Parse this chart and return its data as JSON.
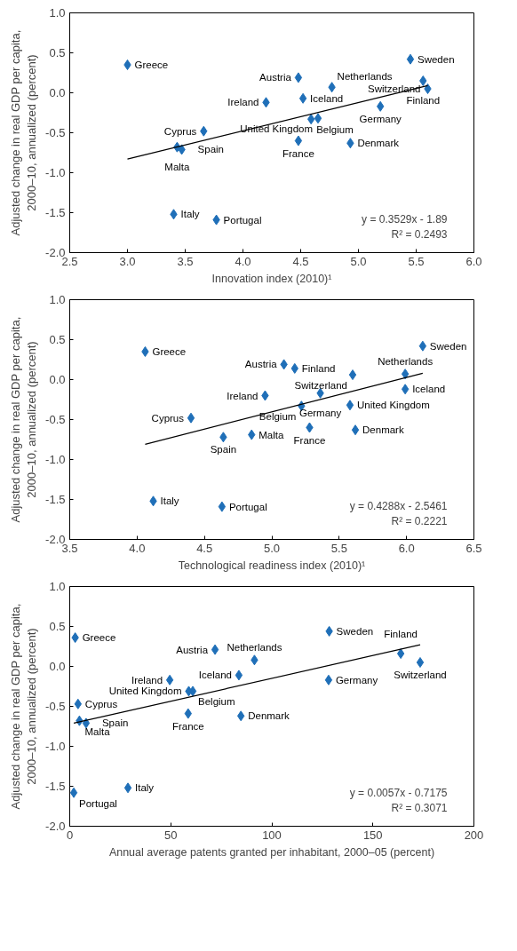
{
  "chart_data": [
    {
      "type": "scatter",
      "xlabel": "Innovation index (2010)¹",
      "ylabel": "Adjusted change in real GDP per capita,\n2000–10, annualized (percent)",
      "xlim": [
        2.5,
        6.0
      ],
      "ylim": [
        -2.0,
        1.0
      ],
      "grid": false,
      "marker": "diamond",
      "xticks": [
        {
          "value": 2.5,
          "label": "2.5"
        },
        {
          "value": 3,
          "label": "3.0"
        },
        {
          "value": 3.5,
          "label": "3.5"
        },
        {
          "value": 4,
          "label": "4.0"
        },
        {
          "value": 4.5,
          "label": "4.5"
        },
        {
          "value": 5,
          "label": "5.0"
        },
        {
          "value": 5.5,
          "label": "5.5"
        },
        {
          "value": 6,
          "label": "6.0"
        }
      ],
      "yticks": [
        {
          "value": -2,
          "label": "-2.0"
        },
        {
          "value": -1.5,
          "label": "-1.5"
        },
        {
          "value": -1,
          "label": "-1.0"
        },
        {
          "value": -0.5,
          "label": "-0.5"
        },
        {
          "value": 0,
          "label": "0.0"
        },
        {
          "value": 0.5,
          "label": "0.5"
        },
        {
          "value": 1,
          "label": "1.0"
        }
      ],
      "series": [
        {
          "color": "#1f6fb8",
          "x": [
            3.0,
            5.45,
            4.48,
            5.56,
            4.77,
            5.6,
            4.52,
            4.2,
            5.19,
            4.59,
            4.65,
            3.66,
            4.48,
            4.93,
            3.43,
            3.47,
            3.4,
            3.77
          ],
          "values": [
            0.35,
            0.42,
            0.19,
            0.15,
            0.07,
            0.05,
            -0.07,
            -0.12,
            -0.17,
            -0.33,
            -0.32,
            -0.48,
            -0.6,
            -0.63,
            -0.68,
            -0.71,
            -1.52,
            -1.59
          ]
        },
        {
          "type": "line",
          "marker": "none",
          "color": "#000000",
          "x": [
            3.0,
            5.6
          ],
          "values": [
            -0.83,
            0.09
          ]
        }
      ],
      "annotations": [
        {
          "text": "Greece",
          "x": 3.0,
          "y": 0.35
        },
        {
          "text": "Sweden",
          "x": 5.45,
          "y": 0.42
        },
        {
          "text": "Austria",
          "x": 4.48,
          "y": 0.19
        },
        {
          "text": "Finland",
          "x": 5.56,
          "y": 0.15
        },
        {
          "text": "Netherlands",
          "x": 4.77,
          "y": 0.07
        },
        {
          "text": "Switzerland",
          "x": 5.6,
          "y": 0.05
        },
        {
          "text": "Iceland",
          "x": 4.52,
          "y": -0.07
        },
        {
          "text": "Ireland",
          "x": 4.2,
          "y": -0.12
        },
        {
          "text": "Germany",
          "x": 5.19,
          "y": -0.17
        },
        {
          "text": "Belgium",
          "x": 4.59,
          "y": -0.33
        },
        {
          "text": "United Kingdom",
          "x": 4.65,
          "y": -0.32
        },
        {
          "text": "Cyprus",
          "x": 3.66,
          "y": -0.48
        },
        {
          "text": "France",
          "x": 4.48,
          "y": -0.6
        },
        {
          "text": "Denmark",
          "x": 4.93,
          "y": -0.63
        },
        {
          "text": "Malta",
          "x": 3.43,
          "y": -0.68
        },
        {
          "text": "Spain",
          "x": 3.47,
          "y": -0.71
        },
        {
          "text": "Italy",
          "x": 3.4,
          "y": -1.52
        },
        {
          "text": "Portugal",
          "x": 3.77,
          "y": -1.59
        },
        "y = 0.3529x - 1.89",
        "R² = 0.2493"
      ]
    },
    {
      "type": "scatter",
      "xlabel": "Technological readiness index (2010)¹",
      "ylabel": "Adjusted change in real GDP per capita,\n2000–10, annualized (percent)",
      "xlim": [
        3.5,
        6.5
      ],
      "ylim": [
        -2.0,
        1.0
      ],
      "xticks": [
        {
          "value": 3.5,
          "label": "3.5"
        },
        {
          "value": 4,
          "label": "4.0"
        },
        {
          "value": 4.5,
          "label": "4.5"
        },
        {
          "value": 5,
          "label": "5.0"
        },
        {
          "value": 5.5,
          "label": "5.5"
        },
        {
          "value": 6,
          "label": "6.0"
        },
        {
          "value": 6.5,
          "label": "6.5"
        }
      ],
      "yticks": [
        {
          "value": -2,
          "label": "-2.0"
        },
        {
          "value": -1.5,
          "label": "-1.5"
        },
        {
          "value": -1,
          "label": "-1.0"
        },
        {
          "value": -0.5,
          "label": "-0.5"
        },
        {
          "value": 0,
          "label": "0.0"
        },
        {
          "value": 0.5,
          "label": "0.5"
        },
        {
          "value": 1,
          "label": "1.0"
        }
      ],
      "grid": false,
      "marker": "diamond",
      "series": [
        {
          "color": "#1f6fb8",
          "x": [
            4.06,
            6.12,
            5.09,
            5.17,
            5.99,
            5.6,
            5.99,
            4.95,
            5.36,
            5.22,
            5.58,
            4.4,
            5.28,
            5.62,
            4.85,
            4.64,
            4.12,
            4.63
          ],
          "values": [
            0.35,
            0.42,
            0.19,
            0.14,
            0.07,
            0.06,
            -0.12,
            -0.2,
            -0.17,
            -0.33,
            -0.32,
            -0.48,
            -0.6,
            -0.63,
            -0.69,
            -0.72,
            -1.52,
            -1.59
          ]
        },
        {
          "type": "line",
          "marker": "none",
          "color": "#000000",
          "x": [
            4.06,
            6.12
          ],
          "values": [
            -0.81,
            0.08
          ]
        }
      ],
      "annotations": [
        {
          "text": "Greece",
          "x": 4.06,
          "y": 0.35
        },
        {
          "text": "Sweden",
          "x": 6.12,
          "y": 0.42
        },
        {
          "text": "Austria",
          "x": 5.09,
          "y": 0.19
        },
        {
          "text": "Finland",
          "x": 5.17,
          "y": 0.14
        },
        {
          "text": "Netherlands",
          "x": 5.99,
          "y": 0.07
        },
        {
          "text": "Switzerland",
          "x": 5.6,
          "y": 0.06
        },
        {
          "text": "Iceland",
          "x": 5.99,
          "y": -0.12
        },
        {
          "text": "Ireland",
          "x": 4.95,
          "y": -0.2
        },
        {
          "text": "Germany",
          "x": 5.36,
          "y": -0.17
        },
        {
          "text": "Belgium",
          "x": 5.22,
          "y": -0.33
        },
        {
          "text": "United Kingdom",
          "x": 5.58,
          "y": -0.32
        },
        {
          "text": "Cyprus",
          "x": 4.4,
          "y": -0.48
        },
        {
          "text": "France",
          "x": 5.28,
          "y": -0.6
        },
        {
          "text": "Denmark",
          "x": 5.62,
          "y": -0.63
        },
        {
          "text": "Malta",
          "x": 4.85,
          "y": -0.69
        },
        {
          "text": "Spain",
          "x": 4.64,
          "y": -0.72
        },
        {
          "text": "Italy",
          "x": 4.12,
          "y": -1.52
        },
        {
          "text": "Portugal",
          "x": 4.63,
          "y": -1.59
        },
        "y = 0.4288x - 2.5461",
        "R² = 0.2221"
      ]
    },
    {
      "type": "scatter",
      "xlabel": "Annual average patents granted per inhabitant, 2000–05 (percent)",
      "ylabel": "Adjusted change in real GDP per capita,\n2000–10, annualized (percent)",
      "xlim": [
        0,
        200
      ],
      "ylim": [
        -2.0,
        1.0
      ],
      "xticks": [
        0,
        50,
        100,
        150,
        200
      ],
      "yticks": [
        {
          "value": -2,
          "label": "-2.0"
        },
        {
          "value": -1.5,
          "label": "-1.5"
        },
        {
          "value": -1,
          "label": "-1.0"
        },
        {
          "value": -0.5,
          "label": "-0.5"
        },
        {
          "value": 0,
          "label": "0.0"
        },
        {
          "value": 0.5,
          "label": "0.5"
        },
        {
          "value": 1,
          "label": "1.0"
        }
      ],
      "grid": false,
      "marker": "diamond",
      "series": [
        {
          "color": "#1f6fb8",
          "x": [
            2.7,
            128.4,
            71.9,
            163.8,
            91.4,
            173.4,
            83.7,
            49.5,
            128.1,
            60.9,
            58.9,
            4.1,
            58.6,
            84.7,
            4.8,
            8.1,
            28.8,
            2.0
          ],
          "values": [
            0.36,
            0.44,
            0.21,
            0.16,
            0.08,
            0.05,
            -0.11,
            -0.17,
            -0.17,
            -0.31,
            -0.31,
            -0.47,
            -0.59,
            -0.62,
            -0.68,
            -0.71,
            -1.52,
            -1.58
          ]
        },
        {
          "type": "line",
          "marker": "none",
          "color": "#000000",
          "x": [
            2.0,
            173.4
          ],
          "values": [
            -0.71,
            0.27
          ]
        }
      ],
      "annotations": [
        {
          "text": "Greece",
          "x": 2.7,
          "y": 0.36
        },
        {
          "text": "Sweden",
          "x": 128.4,
          "y": 0.44
        },
        {
          "text": "Austria",
          "x": 71.9,
          "y": 0.21
        },
        {
          "text": "Finland",
          "x": 163.8,
          "y": 0.16
        },
        {
          "text": "Netherlands",
          "x": 91.4,
          "y": 0.08
        },
        {
          "text": "Switzerland",
          "x": 173.4,
          "y": 0.05
        },
        {
          "text": "Iceland",
          "x": 83.7,
          "y": -0.11
        },
        {
          "text": "Ireland",
          "x": 49.5,
          "y": -0.17
        },
        {
          "text": "Germany",
          "x": 128.1,
          "y": -0.17
        },
        {
          "text": "Belgium",
          "x": 60.9,
          "y": -0.31
        },
        {
          "text": "United Kingdom",
          "x": 58.9,
          "y": -0.31
        },
        {
          "text": "Cyprus",
          "x": 4.1,
          "y": -0.47
        },
        {
          "text": "France",
          "x": 58.6,
          "y": -0.59
        },
        {
          "text": "Denmark",
          "x": 84.7,
          "y": -0.62
        },
        {
          "text": "Malta",
          "x": 4.8,
          "y": -0.68
        },
        {
          "text": "Spain",
          "x": 8.1,
          "y": -0.71
        },
        {
          "text": "Italy",
          "x": 28.8,
          "y": -1.52
        },
        {
          "text": "Portugal",
          "x": 2.0,
          "y": -1.58
        },
        "y = 0.0057x - 0.7175",
        "R² = 0.3071"
      ]
    }
  ]
}
